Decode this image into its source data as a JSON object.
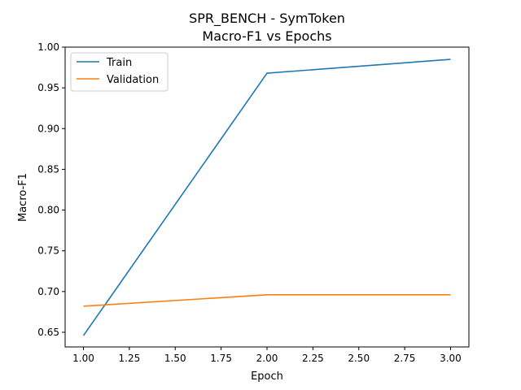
{
  "chart_data": {
    "type": "line",
    "title": "SPR_BENCH - SymToken",
    "subtitle": "Macro-F1 vs Epochs",
    "xlabel": "Epoch",
    "ylabel": "Macro-F1",
    "x": [
      1.0,
      2.0,
      3.0
    ],
    "xlim": [
      0.9,
      3.1
    ],
    "ylim": [
      0.632,
      1.0
    ],
    "xticks": [
      "1.00",
      "1.25",
      "1.50",
      "1.75",
      "2.00",
      "2.25",
      "2.50",
      "2.75",
      "3.00"
    ],
    "yticks": [
      "0.65",
      "0.70",
      "0.75",
      "0.80",
      "0.85",
      "0.90",
      "0.95",
      "1.00"
    ],
    "grid": false,
    "legend_position": "upper-left",
    "series": [
      {
        "name": "Train",
        "color": "#1f77b4",
        "values": [
          0.646,
          0.968,
          0.985
        ]
      },
      {
        "name": "Validation",
        "color": "#ff7f0e",
        "values": [
          0.682,
          0.696,
          0.696
        ]
      }
    ]
  }
}
